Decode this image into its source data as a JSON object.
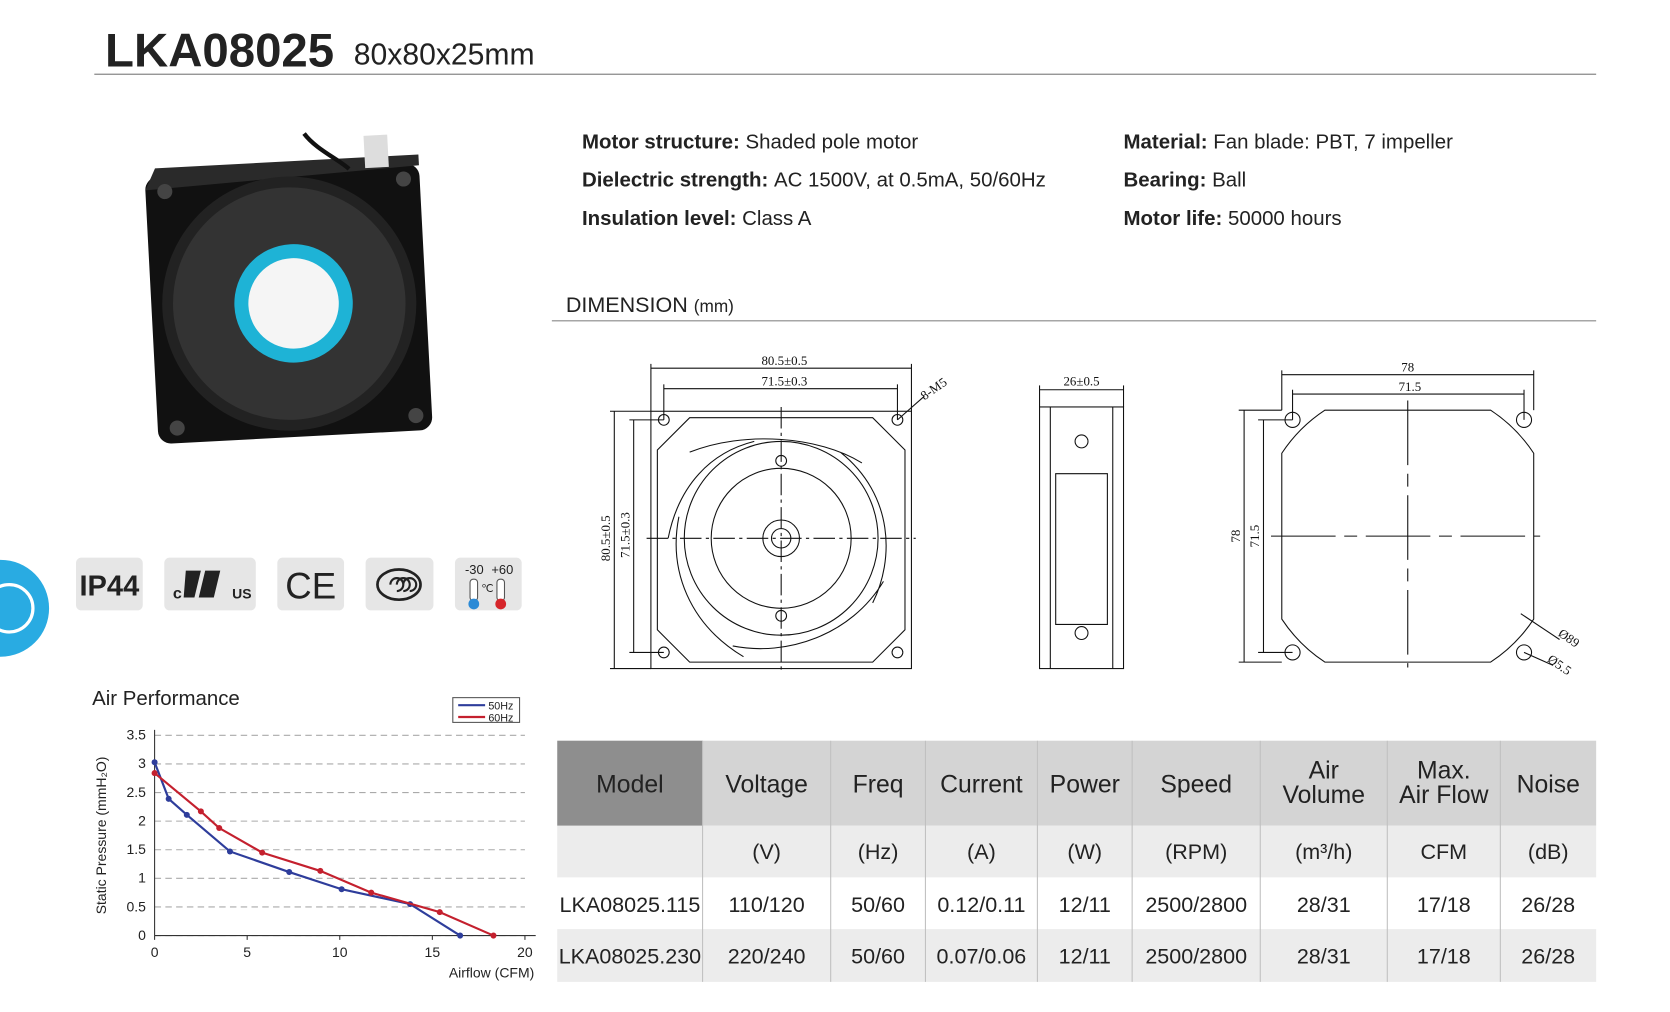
{
  "header": {
    "title": "LKA08025",
    "subtitle": "80x80x25mm"
  },
  "specs": [
    {
      "label": "Motor structure:",
      "value": "Shaded pole motor"
    },
    {
      "label": "Dielectric strength:",
      "value": "AC 1500V, at 0.5mA, 50/60Hz"
    },
    {
      "label": "Insulation level:",
      "value": "Class A"
    },
    {
      "label": "Material:",
      "value": "Fan blade: PBT, 7 impeller"
    },
    {
      "label": "Bearing:",
      "value": "Ball"
    },
    {
      "label": "Motor life:",
      "value": "50000 hours"
    }
  ],
  "certifications": {
    "ip": "IP44",
    "ul_left": "c",
    "ul_right": "US",
    "ce": "CE",
    "temp_low": "-30",
    "temp_high": "+60",
    "temp_unit": "℃"
  },
  "dimension": {
    "title": "DIMENSION",
    "unit": "(mm)",
    "front": {
      "outer": "80.5±0.5",
      "inner": "71.5±0.3",
      "holes": "8-M5",
      "outer_v": "80.5±0.5",
      "inner_v": "71.5±0.3"
    },
    "side": {
      "depth": "26±0.5"
    },
    "back": {
      "outer": "78",
      "inner": "71.5",
      "outer_v": "78",
      "inner_v": "71.5",
      "diameter": "Ø89",
      "hole": "Ø5.5"
    }
  },
  "table": {
    "columns": [
      {
        "name": [
          "Model"
        ]
      },
      {
        "name": [
          "Voltage"
        ],
        "unit": "(V)"
      },
      {
        "name": [
          "Freq"
        ],
        "unit": "(Hz)"
      },
      {
        "name": [
          "Current"
        ],
        "unit": "(A)"
      },
      {
        "name": [
          "Power"
        ],
        "unit": "(W)"
      },
      {
        "name": [
          "Speed"
        ],
        "unit": "(RPM)"
      },
      {
        "name": [
          "Air",
          "Volume"
        ],
        "unit": "(m³/h)"
      },
      {
        "name": [
          "Max.",
          "Air Flow"
        ],
        "unit": "CFM"
      },
      {
        "name": [
          "Noise"
        ],
        "unit": "(dB)"
      }
    ],
    "rows": [
      [
        "LKA08025.115",
        "110/120",
        "50/60",
        "0.12/0.11",
        "12/11",
        "2500/2800",
        "28/31",
        "17/18",
        "26/28"
      ],
      [
        "LKA08025.230",
        "220/240",
        "50/60",
        "0.07/0.06",
        "12/11",
        "2500/2800",
        "28/31",
        "17/18",
        "26/28"
      ]
    ]
  },
  "chart_data": {
    "type": "line",
    "title": "Air Performance",
    "x_label": "Airflow (CFM)",
    "y_label": "Static Pressure (mmH₂O)",
    "xlim": [
      0,
      20
    ],
    "ylim": [
      0,
      3.5
    ],
    "xticks": [
      0,
      5,
      10,
      15,
      20
    ],
    "yticks": [
      0,
      0.5,
      1,
      1.5,
      2,
      2.5,
      3,
      3.5
    ],
    "grid": true,
    "series": [
      {
        "name": "50Hz",
        "color": "#2e3d9b",
        "x": [
          0,
          0.76,
          1.74,
          4.07,
          7.27,
          10.1,
          13.8,
          16.5
        ],
        "values": [
          3.03,
          2.39,
          2.11,
          1.47,
          1.11,
          0.81,
          0.55,
          0
        ]
      },
      {
        "name": "60Hz",
        "color": "#c4202e",
        "x": [
          0,
          2.5,
          3.49,
          5.81,
          8.95,
          11.7,
          15.4,
          18.3
        ],
        "values": [
          2.84,
          2.17,
          1.88,
          1.45,
          1.13,
          0.75,
          0.41,
          0
        ]
      }
    ]
  }
}
